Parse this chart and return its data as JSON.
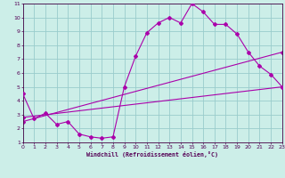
{
  "xlabel": "Windchill (Refroidissement éolien,°C)",
  "xlim": [
    0,
    23
  ],
  "ylim": [
    1,
    11
  ],
  "xticks": [
    0,
    1,
    2,
    3,
    4,
    5,
    6,
    7,
    8,
    9,
    10,
    11,
    12,
    13,
    14,
    15,
    16,
    17,
    18,
    19,
    20,
    21,
    22,
    23
  ],
  "yticks": [
    1,
    2,
    3,
    4,
    5,
    6,
    7,
    8,
    9,
    10,
    11
  ],
  "bg_color": "#cceee8",
  "line_color": "#aa00aa",
  "grid_color": "#99cccc",
  "line1_x": [
    0,
    1,
    2,
    3,
    4,
    5,
    6,
    7,
    8,
    9,
    10,
    11,
    12,
    13,
    14,
    15,
    16,
    17,
    18,
    19,
    20,
    21,
    22,
    23
  ],
  "line1_y": [
    4.5,
    2.7,
    3.1,
    2.3,
    2.5,
    1.6,
    1.4,
    1.3,
    1.4,
    5.0,
    7.2,
    8.9,
    9.6,
    10.0,
    9.6,
    11.0,
    10.4,
    9.5,
    9.5,
    8.8,
    7.5,
    6.5,
    5.9,
    5.0
  ],
  "line2_x": [
    0,
    23
  ],
  "line2_y": [
    2.8,
    5.0
  ],
  "line3_x": [
    0,
    23
  ],
  "line3_y": [
    2.5,
    7.5
  ]
}
